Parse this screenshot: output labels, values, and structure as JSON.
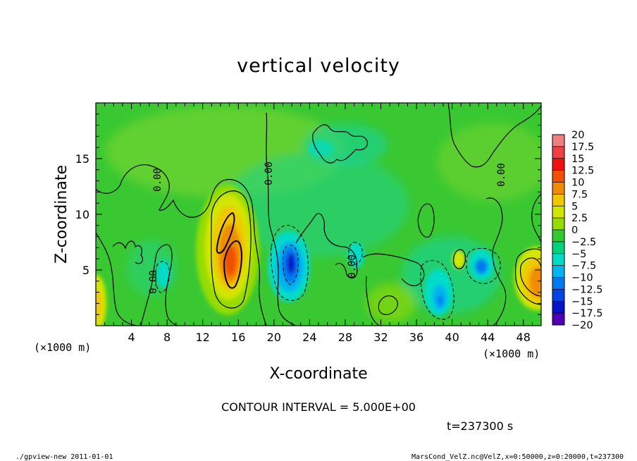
{
  "chart_data": {
    "type": "heatmap",
    "title": "vertical velocity",
    "xlabel": "X-coordinate",
    "ylabel": "Z-coordinate",
    "x_unit": "(×1000 m)",
    "y_unit": "(×1000 m)",
    "xlim": [
      0,
      50
    ],
    "ylim": [
      0,
      20
    ],
    "x_ticks": [
      4,
      8,
      12,
      16,
      20,
      24,
      28,
      32,
      36,
      40,
      44,
      48
    ],
    "y_ticks": [
      5,
      10,
      15
    ],
    "contour_interval": "CONTOUR INTERVAL = 5.000E+00",
    "contour_labels": [
      "0.00",
      "0.00",
      "0.00",
      "0.00",
      "0.00"
    ],
    "time_label": "t=237300 s",
    "colorbar": {
      "levels": [
        "20",
        "17.5",
        "15",
        "12.5",
        "10",
        "7.5",
        "5",
        "2.5",
        "0",
        "-2.5",
        "-5",
        "-7.5",
        "-10",
        "-12.5",
        "-15",
        "-17.5",
        "-20"
      ],
      "colors": [
        "#f08080",
        "#f04040",
        "#f01010",
        "#f05000",
        "#f08c00",
        "#f0c800",
        "#d2e600",
        "#96dc00",
        "#32c832",
        "#00d27d",
        "#00dcc8",
        "#00b4f0",
        "#0078f0",
        "#0046e6",
        "#0014c8",
        "#5000b4"
      ]
    },
    "features": [
      {
        "kind": "updraft",
        "x": 15,
        "z": 6.5,
        "w": 15
      },
      {
        "kind": "updraft",
        "x": 49.5,
        "z": 4,
        "w": 12.5
      },
      {
        "kind": "updraft",
        "x": 0.5,
        "z": 2.5,
        "w": 10
      },
      {
        "kind": "updraft",
        "x": 40.5,
        "z": 6,
        "w": 5
      },
      {
        "kind": "downdraft",
        "x": 22,
        "z": 6,
        "w": -15
      },
      {
        "kind": "downdraft",
        "x": 38.5,
        "z": 2.5,
        "w": -10
      },
      {
        "kind": "downdraft",
        "x": 43,
        "z": 5.5,
        "w": -7.5
      },
      {
        "kind": "downdraft",
        "x": 7.5,
        "z": 5,
        "w": -5
      },
      {
        "kind": "downdraft",
        "x": 29,
        "z": 6,
        "w": -5
      }
    ]
  },
  "footer": {
    "left": "./gpview-new   2011-01-01",
    "right": "MarsCond_VelZ.nc@VelZ,x=0:50000,z=0:20000,t=237300"
  }
}
